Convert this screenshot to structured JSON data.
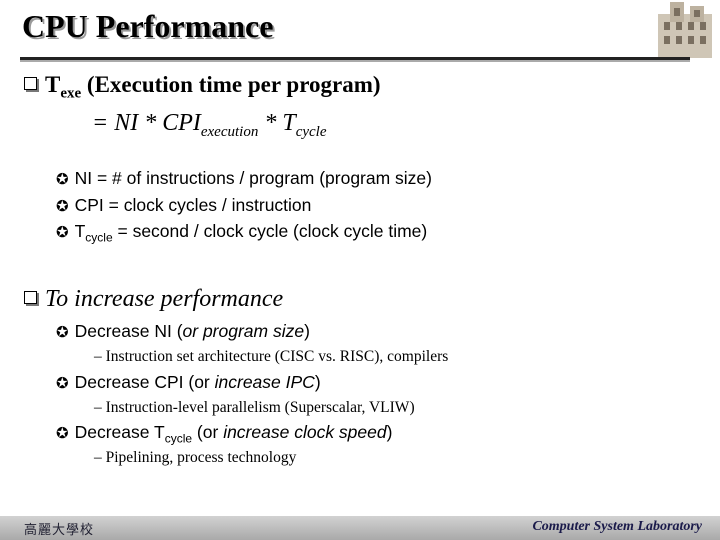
{
  "title": "CPU Performance",
  "texe": {
    "t": "T",
    "sub": "exe",
    "rest": " (Execution time per program)"
  },
  "formula": {
    "prefix": "= NI  * CPI",
    "sub1": "execution",
    "mid": " * T",
    "sub2": "cycle"
  },
  "definitions": [
    {
      "text": "NI = # of instructions / program (program size)"
    },
    {
      "text": "CPI = clock cycles / instruction"
    },
    {
      "pre": "T",
      "sub": "cycle",
      "post": " = second / clock cycle (clock cycle time)"
    }
  ],
  "increase": {
    "heading": "To increase performance",
    "items": [
      {
        "pre": "Decrease NI (",
        "it": "or program size",
        "post": ")",
        "detail": "– Instruction set architecture (CISC vs. RISC), compilers"
      },
      {
        "pre": "Decrease CPI (or ",
        "it": "increase IPC",
        "post": ")",
        "detail": "– Instruction-level parallelism (Superscalar, VLIW)"
      },
      {
        "pre": "Decrease T",
        "sub": "cycle",
        "mid": " (or ",
        "it": "increase clock speed",
        "post": ")",
        "detail": "– Pipelining, process technology"
      }
    ]
  },
  "bullet_symbol": "✪",
  "footer": {
    "left": "高麗大學校",
    "right": "Computer System Laboratory"
  }
}
